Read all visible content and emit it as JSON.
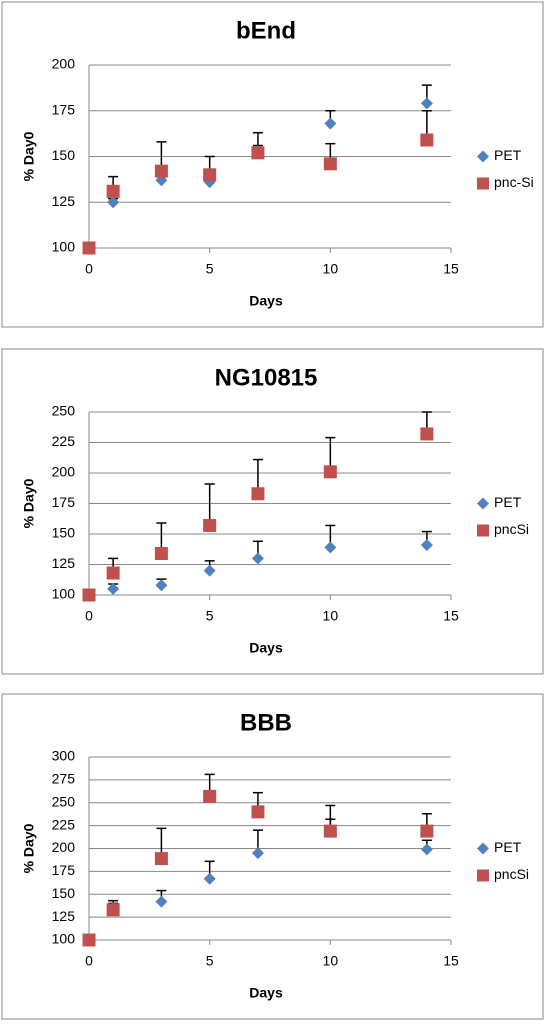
{
  "chart_data": [
    {
      "type": "scatter",
      "title": "bEnd",
      "x_label": "Days",
      "y_label": "% Day0",
      "xlim": [
        0,
        15
      ],
      "xticks": [
        0,
        5,
        10,
        15
      ],
      "ylim": [
        100,
        200
      ],
      "yticks": [
        100,
        125,
        150,
        175,
        200
      ],
      "grid": true,
      "legend": "right",
      "series": [
        {
          "name": "PET",
          "color": "#4f81bd",
          "marker": "diamond",
          "x": [
            0,
            1,
            3,
            5,
            7,
            10,
            14
          ],
          "values": [
            100,
            125,
            137,
            136,
            153,
            168,
            179
          ],
          "errors": [
            0,
            2,
            2,
            2,
            3,
            7,
            10
          ]
        },
        {
          "name": "pnc-Si",
          "color": "#c0504d",
          "marker": "square",
          "x": [
            0,
            1,
            3,
            5,
            7,
            10,
            14
          ],
          "values": [
            100,
            131,
            142,
            140,
            152,
            146,
            159
          ],
          "errors": [
            0,
            8,
            16,
            10,
            11,
            11,
            16
          ]
        }
      ]
    },
    {
      "type": "scatter",
      "title": "NG10815",
      "x_label": "Days",
      "y_label": "% Day0",
      "xlim": [
        0,
        15
      ],
      "xticks": [
        0,
        5,
        10,
        15
      ],
      "ylim": [
        100,
        250
      ],
      "yticks": [
        100,
        125,
        150,
        175,
        200,
        225,
        250
      ],
      "grid": true,
      "legend": "right",
      "series": [
        {
          "name": "PET",
          "color": "#4f81bd",
          "marker": "diamond",
          "x": [
            0,
            1,
            3,
            5,
            7,
            10,
            14
          ],
          "values": [
            100,
            105,
            108,
            120,
            130,
            139,
            141
          ],
          "errors": [
            0,
            4,
            5,
            8,
            14,
            18,
            11
          ]
        },
        {
          "name": "pncSi",
          "color": "#c0504d",
          "marker": "square",
          "x": [
            0,
            1,
            3,
            5,
            7,
            10,
            14
          ],
          "values": [
            100,
            118,
            134,
            157,
            183,
            201,
            232
          ],
          "errors": [
            0,
            12,
            25,
            34,
            28,
            28,
            18
          ]
        }
      ]
    },
    {
      "type": "scatter",
      "title": "BBB",
      "x_label": "Days",
      "y_label": "% Day0",
      "xlim": [
        0,
        15
      ],
      "xticks": [
        0,
        5,
        10,
        15
      ],
      "ylim": [
        100,
        300
      ],
      "yticks": [
        100,
        125,
        150,
        175,
        200,
        225,
        250,
        275,
        300
      ],
      "grid": true,
      "legend": "right",
      "series": [
        {
          "name": "PET",
          "color": "#4f81bd",
          "marker": "diamond",
          "x": [
            0,
            1,
            3,
            5,
            7,
            10,
            14
          ],
          "values": [
            100,
            135,
            142,
            167,
            195,
            220,
            199
          ],
          "errors": [
            0,
            5,
            12,
            19,
            25,
            12,
            10
          ]
        },
        {
          "name": "pncSi",
          "color": "#c0504d",
          "marker": "square",
          "x": [
            0,
            1,
            3,
            5,
            7,
            10,
            14
          ],
          "values": [
            100,
            133,
            189,
            257,
            240,
            219,
            219
          ],
          "errors": [
            0,
            10,
            33,
            24,
            21,
            28,
            19
          ]
        }
      ]
    }
  ]
}
